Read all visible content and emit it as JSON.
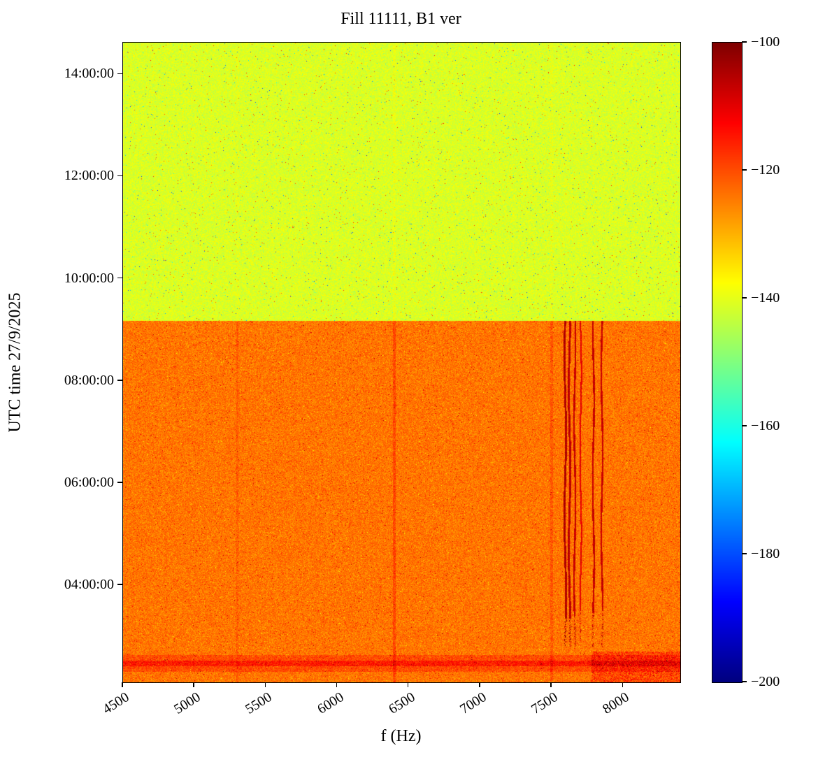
{
  "figure": {
    "title": "Fill 11111, B1 ver",
    "xlabel": "f (Hz)",
    "ylabel": "UTC time 27/9/2025"
  },
  "chart_data": {
    "type": "heatmap",
    "subtype": "spectrogram",
    "title": "Fill 11111, B1 ver",
    "xlabel": "f (Hz)",
    "ylabel": "UTC time 27/9/2025",
    "colormap": "jet",
    "x_range_hz": [
      4500,
      8400
    ],
    "x_ticks": [
      {
        "value": 4500,
        "label": "4500"
      },
      {
        "value": 5000,
        "label": "5000"
      },
      {
        "value": 5500,
        "label": "5500"
      },
      {
        "value": 6000,
        "label": "6000"
      },
      {
        "value": 6500,
        "label": "6500"
      },
      {
        "value": 7000,
        "label": "7000"
      },
      {
        "value": 7500,
        "label": "7500"
      },
      {
        "value": 8000,
        "label": "8000"
      }
    ],
    "y_time_range_hours": [
      2.1,
      14.62
    ],
    "y_ticks": [
      {
        "hour": 14,
        "label": "14:00:00"
      },
      {
        "hour": 12,
        "label": "12:00:00"
      },
      {
        "hour": 10,
        "label": "10:00:00"
      },
      {
        "hour": 8,
        "label": "08:00:00"
      },
      {
        "hour": 6,
        "label": "06:00:00"
      },
      {
        "hour": 4,
        "label": "04:00:00"
      }
    ],
    "colorbar": {
      "range_db": [
        -200,
        -100
      ],
      "ticks": [
        {
          "value": -100,
          "label": "−100"
        },
        {
          "value": -120,
          "label": "−120"
        },
        {
          "value": -140,
          "label": "−140"
        },
        {
          "value": -160,
          "label": "−160"
        },
        {
          "value": -180,
          "label": "−180"
        },
        {
          "value": -200,
          "label": "−200"
        }
      ]
    },
    "transition_hour": 9.17,
    "regions": [
      {
        "name": "upper-quiet",
        "t_start": 9.17,
        "t_end": 14.62,
        "mean_db": -141,
        "noise_db": 5.5
      },
      {
        "name": "lower-loud",
        "t_start": 2.1,
        "t_end": 9.17,
        "mean_db": -124,
        "noise_db": 6.5
      }
    ],
    "vertical_lines_hz": [
      {
        "f": 7595,
        "db": -105,
        "t_solid": 3.35,
        "t_dash": 2.8,
        "hw": 7,
        "phase": 0.3
      },
      {
        "f": 7625,
        "db": -106,
        "t_solid": 3.35,
        "t_dash": 2.8,
        "hw": 7,
        "phase": 1.6
      },
      {
        "f": 7662,
        "db": -107,
        "t_solid": 3.4,
        "t_dash": 2.8,
        "hw": 6,
        "phase": 2.9
      },
      {
        "f": 7703,
        "db": -110,
        "t_solid": 3.5,
        "t_dash": 2.9,
        "hw": 5,
        "phase": 4.1
      },
      {
        "f": 7792,
        "db": -107,
        "t_solid": 3.45,
        "t_dash": 2.8,
        "hw": 6,
        "phase": 5.2
      },
      {
        "f": 7852,
        "db": -107,
        "t_solid": 3.5,
        "t_dash": 2.8,
        "hw": 6,
        "phase": 0.9
      }
    ],
    "faint_lines_hz": [
      {
        "f": 5300,
        "hw": 9,
        "boost": 2.5
      },
      {
        "f": 6400,
        "hw": 10,
        "boost": 4.5
      },
      {
        "f": 7500,
        "hw": 8,
        "boost": 3.0
      }
    ],
    "horizontal_band": {
      "center_hour": 2.47,
      "half_core": 0.06,
      "half_outer": 0.17,
      "boost_db": 9
    },
    "hot_patch": {
      "t_max_hour": 2.7,
      "f_min_hz": 7780,
      "boost_db": 7
    },
    "seed": 1234567
  }
}
